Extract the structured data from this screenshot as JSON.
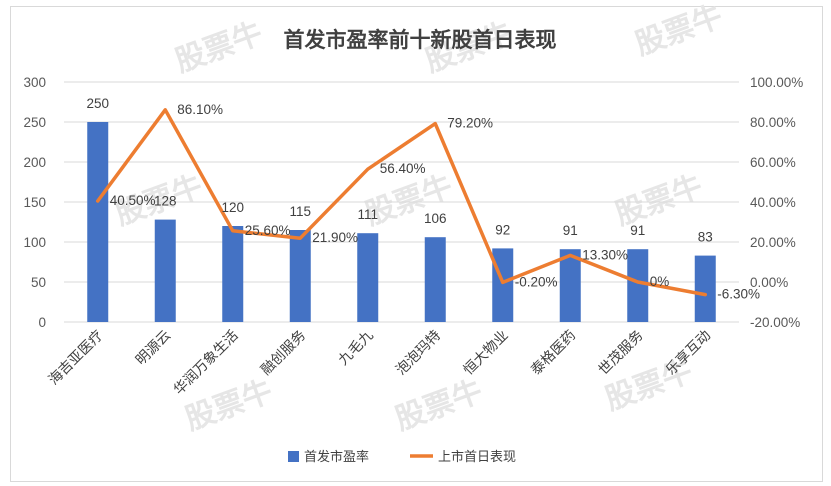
{
  "chart_data": {
    "type": "bar",
    "title": "首发市盈率前十新股首日表现",
    "categories": [
      "海吉亚医疗",
      "明源云",
      "华润万象生活",
      "融创服务",
      "九毛九",
      "泡泡玛特",
      "恒大物业",
      "泰格医药",
      "世茂服务",
      "乐享互动"
    ],
    "series": [
      {
        "name": "首发市盈率",
        "type": "bar",
        "axis": "left",
        "color": "#4472c4",
        "values": [
          250,
          128,
          120,
          115,
          111,
          106,
          92,
          91,
          91,
          83
        ],
        "labels": [
          "250",
          "128",
          "120",
          "115",
          "111",
          "106",
          "92",
          "91",
          "91",
          "83"
        ]
      },
      {
        "name": "上市首日表现",
        "type": "line",
        "axis": "right",
        "color": "#ed7d31",
        "values": [
          40.5,
          86.1,
          25.6,
          21.9,
          56.4,
          79.2,
          -0.2,
          13.3,
          0,
          -6.3
        ],
        "labels": [
          "40.50%",
          "86.10%",
          "25.60%",
          "21.90%",
          "56.40%",
          "79.20%",
          "-0.20%",
          "13.30%",
          "0%",
          "-6.30%"
        ]
      }
    ],
    "y_left": {
      "min": 0,
      "max": 300,
      "step": 50,
      "ticks": [
        "0",
        "50",
        "100",
        "150",
        "200",
        "250",
        "300"
      ]
    },
    "y_right": {
      "min": -20,
      "max": 100,
      "step": 20,
      "ticks": [
        "-20.00%",
        "0.00%",
        "20.00%",
        "40.00%",
        "60.00%",
        "80.00%",
        "100.00%"
      ]
    },
    "grid": true,
    "legend": "bottom"
  },
  "watermark": "股票牛"
}
